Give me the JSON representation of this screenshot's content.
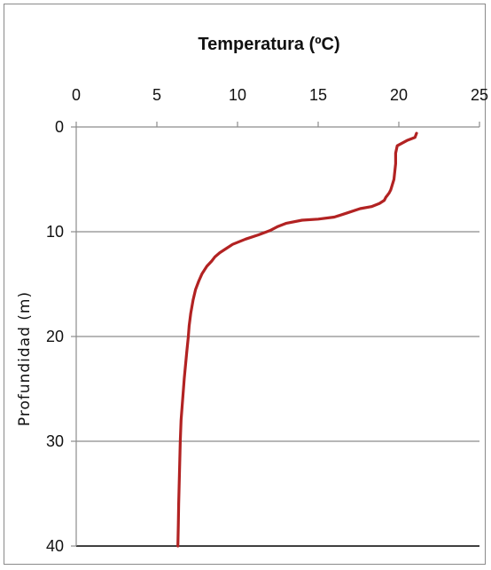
{
  "chart_data": {
    "type": "line",
    "title": "",
    "xlabel": "Temperatura (ºC)",
    "ylabel": "Profundidad  (m)",
    "xlim": [
      0,
      25
    ],
    "ylim": [
      0,
      40
    ],
    "x_axis_position": "top",
    "y_axis_inverted": true,
    "x_ticks": [
      0,
      5,
      10,
      15,
      20,
      25
    ],
    "y_ticks": [
      0,
      10,
      20,
      30,
      40
    ],
    "grid": "horizontal",
    "legend": "none",
    "series": [
      {
        "color": "#b22222",
        "points": [
          [
            21.1,
            0.6
          ],
          [
            21.0,
            1.0
          ],
          [
            20.5,
            1.3
          ],
          [
            19.9,
            1.8
          ],
          [
            19.8,
            2.5
          ],
          [
            19.8,
            3.5
          ],
          [
            19.7,
            5.0
          ],
          [
            19.5,
            6.0
          ],
          [
            19.4,
            6.3
          ],
          [
            19.3,
            6.5
          ],
          [
            19.2,
            6.7
          ],
          [
            19.1,
            7.0
          ],
          [
            18.8,
            7.3
          ],
          [
            18.3,
            7.6
          ],
          [
            17.6,
            7.8
          ],
          [
            16.8,
            8.2
          ],
          [
            16.0,
            8.6
          ],
          [
            15.0,
            8.8
          ],
          [
            14.0,
            8.9
          ],
          [
            13.0,
            9.2
          ],
          [
            12.5,
            9.5
          ],
          [
            12.0,
            9.9
          ],
          [
            11.3,
            10.3
          ],
          [
            10.5,
            10.7
          ],
          [
            9.7,
            11.2
          ],
          [
            9.3,
            11.6
          ],
          [
            8.9,
            12.0
          ],
          [
            8.6,
            12.4
          ],
          [
            8.4,
            12.8
          ],
          [
            8.1,
            13.3
          ],
          [
            7.8,
            14.0
          ],
          [
            7.6,
            14.7
          ],
          [
            7.4,
            15.5
          ],
          [
            7.25,
            16.5
          ],
          [
            7.1,
            17.8
          ],
          [
            7.0,
            19.0
          ],
          [
            6.95,
            20.0
          ],
          [
            6.85,
            21.5
          ],
          [
            6.7,
            24.0
          ],
          [
            6.6,
            26.0
          ],
          [
            6.5,
            28.0
          ],
          [
            6.45,
            30.0
          ],
          [
            6.4,
            33.0
          ],
          [
            6.35,
            36.0
          ],
          [
            6.33,
            38.0
          ],
          [
            6.3,
            40.0
          ]
        ]
      }
    ]
  }
}
